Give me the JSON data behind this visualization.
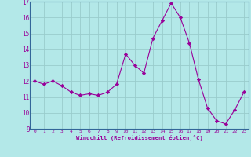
{
  "x": [
    0,
    1,
    2,
    3,
    4,
    5,
    6,
    7,
    8,
    9,
    10,
    11,
    12,
    13,
    14,
    15,
    16,
    17,
    18,
    19,
    20,
    21,
    22,
    23
  ],
  "y": [
    12.0,
    11.8,
    12.0,
    11.7,
    11.3,
    11.1,
    11.2,
    11.1,
    11.3,
    11.8,
    13.7,
    13.0,
    12.5,
    14.7,
    15.8,
    16.9,
    16.0,
    14.4,
    12.1,
    10.3,
    9.5,
    9.3,
    10.2,
    11.3
  ],
  "line_color": "#990099",
  "marker": "D",
  "marker_size": 2.2,
  "bg_color": "#b3e8e8",
  "grid_color": "#99cccc",
  "xlabel": "Windchill (Refroidissement éolien,°C)",
  "tick_color": "#990099",
  "ylim": [
    9,
    17
  ],
  "xlim": [
    -0.5,
    23.5
  ],
  "yticks": [
    9,
    10,
    11,
    12,
    13,
    14,
    15,
    16,
    17
  ],
  "xticks": [
    0,
    1,
    2,
    3,
    4,
    5,
    6,
    7,
    8,
    9,
    10,
    11,
    12,
    13,
    14,
    15,
    16,
    17,
    18,
    19,
    20,
    21,
    22,
    23
  ],
  "spine_color": "#336699"
}
